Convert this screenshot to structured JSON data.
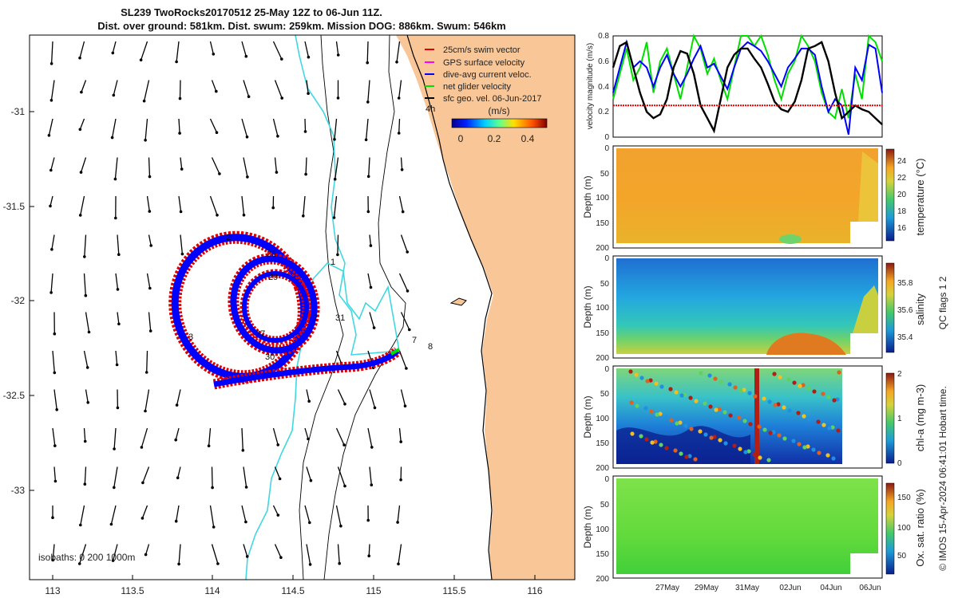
{
  "title": {
    "line1": "SL239 TwoRocks20170512 25-May 12Z to 06-Jun 11Z.",
    "line2": "Dist. over ground: 581km. Dist. swum: 259km. Mission DOG: 886km. Swum: 546km"
  },
  "map": {
    "x_ticks": [
      "113",
      "113.5",
      "114",
      "114.5",
      "115",
      "115.5",
      "116"
    ],
    "y_ticks": [
      "-31",
      "-31.5",
      "-32",
      "-32.5",
      "-33"
    ],
    "legend": [
      {
        "label": "25cm/s swim vector",
        "color": "#e00000"
      },
      {
        "label": "GPS surface velocity",
        "color": "#ff00ff"
      },
      {
        "label": "dive-avg current veloc.",
        "color": "#0000ff"
      },
      {
        "label": "net glider velocity",
        "color": "#00e000"
      },
      {
        "label": "sfc geo. vel. 06-Jun-2017",
        "color": "#000000"
      }
    ],
    "colorbar": {
      "label": "(m/s)",
      "ticks": [
        "0",
        "0.2",
        "0.4"
      ]
    },
    "day_markers": [
      "2",
      "26",
      "1",
      "29",
      "3",
      "27",
      "2",
      "31",
      "30",
      "7",
      "8",
      "4h"
    ],
    "isobaths_text": "isobaths: 0   200  1000m"
  },
  "chart_data": [
    {
      "type": "line",
      "title": "velocity magnitude",
      "ylabel": "velocity magnitude (m/s)",
      "ylim": [
        0,
        0.8
      ],
      "yticks": [
        "0",
        "0.2",
        "0.4",
        "0.6",
        "0.8"
      ],
      "xlim": [
        0,
        12
      ],
      "series": [
        {
          "name": "net glider velocity",
          "color": "#00e000",
          "x": [
            0,
            0.3,
            0.6,
            0.9,
            1.2,
            1.5,
            1.8,
            2.1,
            2.4,
            2.7,
            3,
            3.3,
            3.6,
            3.9,
            4.2,
            4.5,
            4.8,
            5.1,
            5.4,
            5.7,
            6,
            6.3,
            6.6,
            6.9,
            7.2,
            7.5,
            7.8,
            8.1,
            8.4,
            8.7,
            9,
            9.3,
            9.6,
            9.9,
            10.2,
            10.5,
            10.8,
            11.1,
            11.4,
            11.7,
            12
          ],
          "values": [
            0.3,
            0.5,
            0.7,
            0.45,
            0.55,
            0.75,
            0.35,
            0.6,
            0.7,
            0.5,
            0.3,
            0.55,
            0.8,
            0.7,
            0.5,
            0.62,
            0.45,
            0.3,
            0.55,
            0.8,
            0.8,
            0.72,
            0.8,
            0.65,
            0.45,
            0.3,
            0.5,
            0.6,
            0.8,
            0.72,
            0.6,
            0.35,
            0.2,
            0.15,
            0.38,
            0.15,
            0.5,
            0.3,
            0.8,
            0.75,
            0.6
          ]
        },
        {
          "name": "dive-avg current veloc.",
          "color": "#0000ff",
          "x": [
            0,
            0.3,
            0.6,
            0.9,
            1.2,
            1.5,
            1.8,
            2.1,
            2.4,
            2.7,
            3,
            3.3,
            3.6,
            3.9,
            4.2,
            4.5,
            4.8,
            5.1,
            5.4,
            5.7,
            6,
            6.3,
            6.6,
            6.9,
            7.2,
            7.5,
            7.8,
            8.1,
            8.4,
            8.7,
            9,
            9.3,
            9.6,
            9.9,
            10.2,
            10.5,
            10.8,
            11.1,
            11.4,
            11.7,
            12
          ],
          "values": [
            0.35,
            0.55,
            0.75,
            0.55,
            0.6,
            0.55,
            0.4,
            0.55,
            0.65,
            0.5,
            0.4,
            0.5,
            0.62,
            0.72,
            0.55,
            0.58,
            0.48,
            0.38,
            0.55,
            0.7,
            0.75,
            0.72,
            0.68,
            0.6,
            0.5,
            0.4,
            0.55,
            0.62,
            0.7,
            0.7,
            0.65,
            0.4,
            0.2,
            0.3,
            0.25,
            0.02,
            0.55,
            0.45,
            0.73,
            0.7,
            0.35
          ]
        },
        {
          "name": "sfc geo. vel. 06-Jun-2017",
          "color": "#000000",
          "x": [
            0,
            0.3,
            0.6,
            0.9,
            1.2,
            1.5,
            1.8,
            2.1,
            2.4,
            2.7,
            3,
            3.3,
            3.6,
            3.9,
            4.2,
            4.5,
            4.8,
            5.1,
            5.4,
            5.7,
            6,
            6.3,
            6.6,
            6.9,
            7.2,
            7.5,
            7.8,
            8.1,
            8.4,
            8.7,
            9,
            9.3,
            9.6,
            9.9,
            10.2,
            10.5,
            10.8,
            11.1,
            11.4,
            11.7,
            12
          ],
          "values": [
            0.55,
            0.72,
            0.75,
            0.55,
            0.35,
            0.2,
            0.15,
            0.18,
            0.3,
            0.55,
            0.68,
            0.66,
            0.5,
            0.25,
            0.15,
            0.05,
            0.3,
            0.55,
            0.65,
            0.7,
            0.7,
            0.62,
            0.55,
            0.42,
            0.28,
            0.22,
            0.2,
            0.28,
            0.45,
            0.7,
            0.72,
            0.75,
            0.6,
            0.35,
            0.15,
            0.2,
            0.25,
            0.22,
            0.2,
            0.15,
            0.1
          ]
        },
        {
          "name": "25cm/s swim vector",
          "color": "#e00000",
          "x": [
            0,
            12
          ],
          "values": [
            0.25,
            0.25
          ]
        }
      ]
    },
    {
      "type": "heatmap",
      "title": "temperature",
      "ylabel": "Depth (m)",
      "colorbar_label": "temperature (°C)",
      "colorbar_ticks": [
        "16",
        "18",
        "20",
        "22",
        "24"
      ],
      "y_ticks": [
        "0",
        "50",
        "100",
        "150",
        "200"
      ]
    },
    {
      "type": "heatmap",
      "title": "salinity",
      "ylabel": "Depth (m)",
      "colorbar_label": "salinity",
      "colorbar_ticks": [
        "35.4",
        "35.6",
        "35.8"
      ],
      "y_ticks": [
        "0",
        "50",
        "100",
        "150",
        "200"
      ]
    },
    {
      "type": "heatmap",
      "title": "chl-a",
      "ylabel": "Depth (m)",
      "colorbar_label": "chl-a (mg m-3)",
      "colorbar_ticks": [
        "0",
        "1",
        "2"
      ],
      "y_ticks": [
        "0",
        "50",
        "100",
        "150",
        "200"
      ]
    },
    {
      "type": "heatmap",
      "title": "oxygen saturation",
      "ylabel": "Depth (m)",
      "colorbar_label": "Ox. sat. ratio (%)",
      "colorbar_ticks": [
        "50",
        "100",
        "150"
      ],
      "y_ticks": [
        "0",
        "50",
        "100",
        "150",
        "200"
      ],
      "x_ticks": [
        "27May",
        "29May",
        "31May",
        "02Jun",
        "04Jun",
        "06Jun"
      ]
    }
  ],
  "side_note": "QC flags 1  2",
  "footer": "© IMOS 15-Apr-2024 06:41:01 Hobart time."
}
